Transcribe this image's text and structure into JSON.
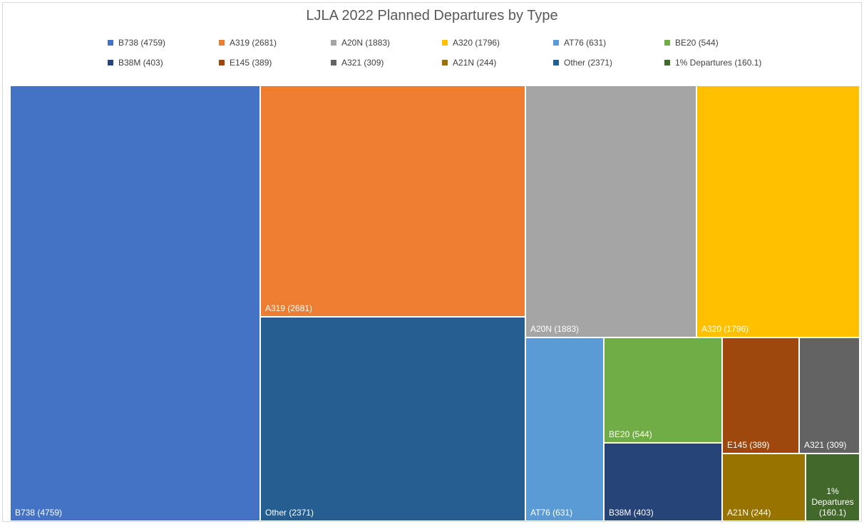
{
  "chart_data": {
    "type": "treemap",
    "title": "LJLA 2022 Planned Departures by Type",
    "legend_position": "top",
    "items": [
      {
        "name": "B738",
        "value": 4759,
        "label": "B738 (4759)",
        "color": "#4472c4"
      },
      {
        "name": "A319",
        "value": 2681,
        "label": "A319 (2681)",
        "color": "#ed7d31"
      },
      {
        "name": "A20N",
        "value": 1883,
        "label": "A20N (1883)",
        "color": "#a5a5a5"
      },
      {
        "name": "A320",
        "value": 1796,
        "label": "A320 (1796)",
        "color": "#ffc000"
      },
      {
        "name": "AT76",
        "value": 631,
        "label": "AT76 (631)",
        "color": "#5b9bd5"
      },
      {
        "name": "BE20",
        "value": 544,
        "label": "BE20 (544)",
        "color": "#70ad47"
      },
      {
        "name": "B38M",
        "value": 403,
        "label": "B38M (403)",
        "color": "#264478"
      },
      {
        "name": "E145",
        "value": 389,
        "label": "E145 (389)",
        "color": "#9e480e"
      },
      {
        "name": "A321",
        "value": 309,
        "label": "A321 (309)",
        "color": "#636363"
      },
      {
        "name": "A21N",
        "value": 244,
        "label": "A21N (244)",
        "color": "#997300"
      },
      {
        "name": "Other",
        "value": 2371,
        "label": "Other (2371)",
        "color": "#255e91"
      },
      {
        "name": "1% Departures",
        "value": 160.1,
        "label": "1% Departures (160.1)",
        "color": "#43682b"
      }
    ]
  }
}
